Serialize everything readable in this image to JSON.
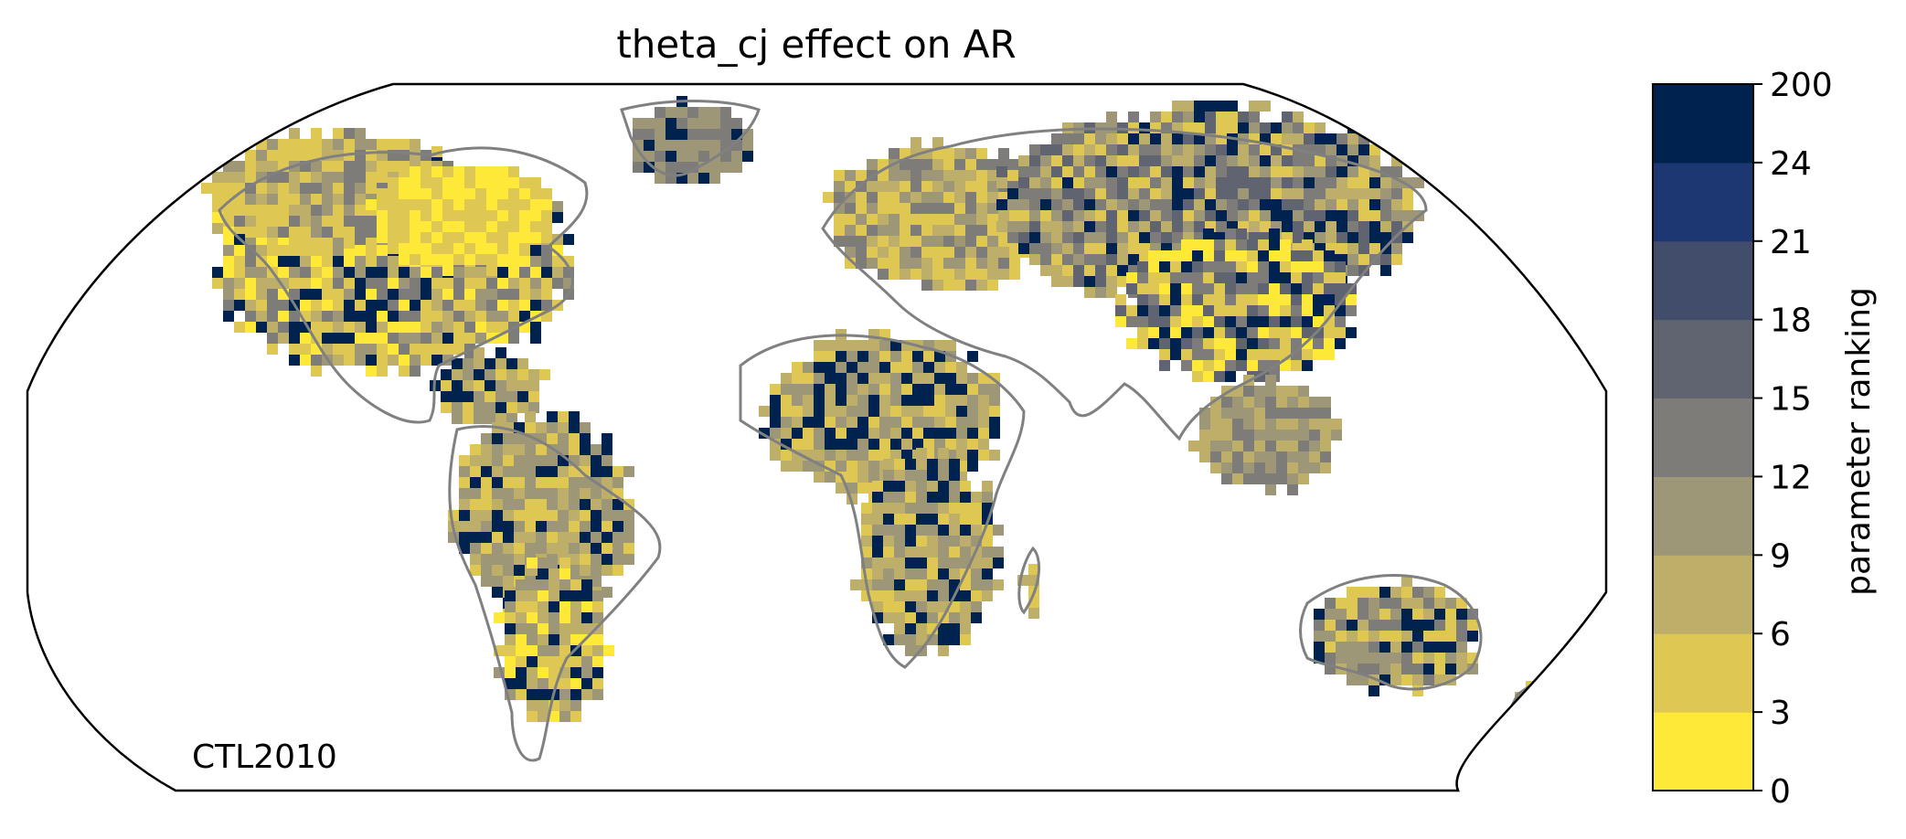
{
  "title": "theta_cj effect on AR",
  "run_label": "CTL2010",
  "colorbar": {
    "label": "parameter ranking",
    "ticks": [
      "0",
      "3",
      "6",
      "9",
      "12",
      "15",
      "18",
      "21",
      "24",
      "200"
    ],
    "bins": [
      {
        "from": 0,
        "to": 3,
        "color": "#fee838"
      },
      {
        "from": 3,
        "to": 6,
        "color": "#dec853"
      },
      {
        "from": 6,
        "to": 9,
        "color": "#bdae6a"
      },
      {
        "from": 9,
        "to": 12,
        "color": "#9d9677"
      },
      {
        "from": 12,
        "to": 15,
        "color": "#7d7c78"
      },
      {
        "from": 15,
        "to": 18,
        "color": "#5f6470"
      },
      {
        "from": 18,
        "to": 21,
        "color": "#424d6b"
      },
      {
        "from": 21,
        "to": 24,
        "color": "#1c3772"
      },
      {
        "from": 24,
        "to": 200,
        "color": "#00224e"
      }
    ]
  },
  "map": {
    "projection": "Robinson-like global",
    "coastline_color": "#808080",
    "frame_color": "#000000"
  }
}
